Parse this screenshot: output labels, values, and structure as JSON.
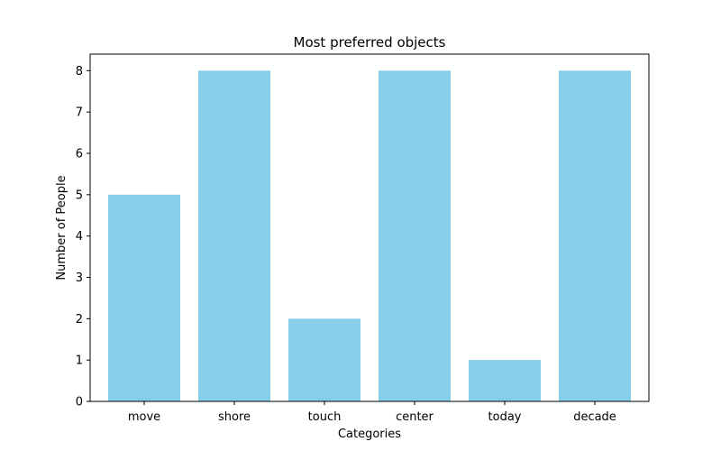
{
  "chart_data": {
    "type": "bar",
    "title": "Most preferred objects",
    "xlabel": "Categories",
    "ylabel": "Number of People",
    "categories": [
      "move",
      "shore",
      "touch",
      "center",
      "today",
      "decade"
    ],
    "values": [
      5,
      8,
      2,
      8,
      1,
      8
    ],
    "ylim": [
      0,
      8.4
    ],
    "yticks": [
      "0",
      "1",
      "2",
      "3",
      "4",
      "5",
      "6",
      "7",
      "8"
    ],
    "bar_color": "#87CEEB",
    "grid": false,
    "legend": "none"
  }
}
